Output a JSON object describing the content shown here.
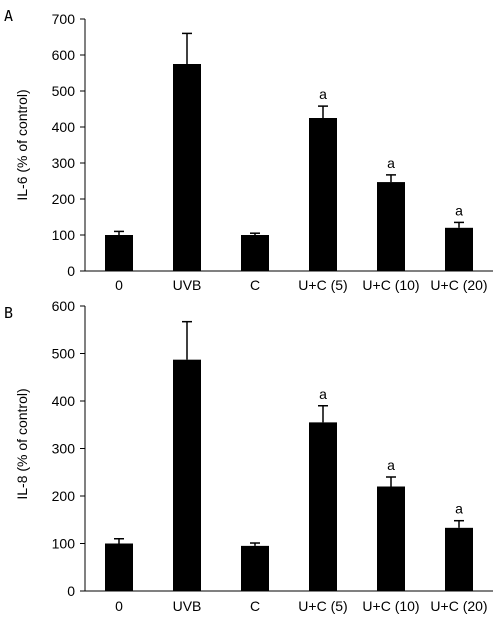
{
  "chart_data": [
    {
      "type": "bar",
      "panel_label": "A",
      "ylabel": "IL-6 (% of control)",
      "xlabel": "",
      "categories": [
        "0",
        "UVB",
        "C",
        "U+C (5)",
        "U+C (10)",
        "U+C (20)"
      ],
      "values": [
        100,
        575,
        100,
        425,
        247,
        120
      ],
      "errors": [
        10,
        85,
        5,
        33,
        20,
        15
      ],
      "annotations": [
        "",
        "",
        "",
        "a",
        "a",
        "a"
      ],
      "ylim": [
        0,
        700
      ],
      "yticks": [
        "0",
        "100",
        "200",
        "300",
        "400",
        "500",
        "600",
        "700"
      ],
      "bar_color": "#000000",
      "grid": false
    },
    {
      "type": "bar",
      "panel_label": "B",
      "ylabel": "IL-8 (% of control)",
      "xlabel": "",
      "categories": [
        "0",
        "UVB",
        "C",
        "U+C (5)",
        "U+C (10)",
        "U+C (20)"
      ],
      "values": [
        100,
        487,
        95,
        355,
        220,
        133
      ],
      "errors": [
        10,
        80,
        6,
        35,
        20,
        15
      ],
      "annotations": [
        "",
        "",
        "",
        "a",
        "a",
        "a"
      ],
      "ylim": [
        0,
        600
      ],
      "yticks": [
        "0",
        "100",
        "200",
        "300",
        "400",
        "500",
        "600"
      ],
      "bar_color": "#000000",
      "grid": false
    }
  ]
}
